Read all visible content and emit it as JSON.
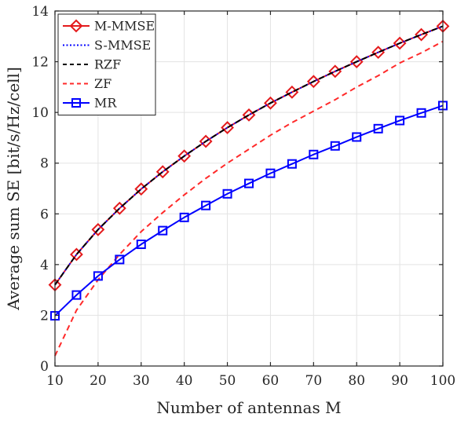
{
  "chart_data": {
    "type": "line",
    "xlabel": "Number of antennas M",
    "ylabel": "Average sum SE [bit/s/Hz/cell]",
    "xlim": [
      10,
      100
    ],
    "ylim": [
      0,
      14
    ],
    "xticks": [
      "10",
      "20",
      "30",
      "40",
      "50",
      "60",
      "70",
      "80",
      "90",
      "100"
    ],
    "yticks": [
      "0",
      "2",
      "4",
      "6",
      "8",
      "10",
      "12",
      "14"
    ],
    "grid": true,
    "legend_position": "top-left",
    "x": [
      10,
      15,
      20,
      25,
      30,
      35,
      40,
      45,
      50,
      55,
      60,
      65,
      70,
      75,
      80,
      85,
      90,
      95,
      100
    ],
    "series": [
      {
        "name": "M-MMSE",
        "color": "#e41a1c",
        "style": "solid",
        "marker": "diamond",
        "values": [
          3.2,
          4.4,
          5.38,
          6.22,
          6.98,
          7.66,
          8.28,
          8.86,
          9.4,
          9.9,
          10.37,
          10.8,
          11.22,
          11.62,
          12.0,
          12.37,
          12.73,
          13.07,
          13.4
        ]
      },
      {
        "name": "S-MMSE",
        "color": "#0000ff",
        "style": "dotted",
        "marker": "none",
        "values": [
          3.2,
          4.4,
          5.38,
          6.22,
          6.98,
          7.66,
          8.28,
          8.86,
          9.4,
          9.9,
          10.37,
          10.8,
          11.22,
          11.62,
          12.0,
          12.37,
          12.73,
          13.07,
          13.4
        ]
      },
      {
        "name": "RZF",
        "color": "#000000",
        "style": "dashed",
        "marker": "none",
        "values": [
          3.2,
          4.4,
          5.38,
          6.22,
          6.98,
          7.66,
          8.28,
          8.86,
          9.4,
          9.9,
          10.37,
          10.8,
          11.22,
          11.62,
          12.0,
          12.37,
          12.73,
          13.07,
          13.4
        ]
      },
      {
        "name": "ZF",
        "color": "#ff2a2a",
        "style": "dashed",
        "marker": "none",
        "values": [
          0.4,
          2.2,
          3.4,
          4.4,
          5.3,
          6.05,
          6.75,
          7.4,
          8.0,
          8.55,
          9.1,
          9.6,
          10.05,
          10.5,
          11.0,
          11.45,
          11.95,
          12.35,
          12.8
        ]
      },
      {
        "name": "MR",
        "color": "#0000ff",
        "style": "solid",
        "marker": "square",
        "values": [
          1.98,
          2.8,
          3.55,
          4.2,
          4.8,
          5.34,
          5.86,
          6.33,
          6.79,
          7.2,
          7.6,
          7.97,
          8.34,
          8.68,
          9.03,
          9.36,
          9.68,
          9.98,
          10.27
        ]
      }
    ]
  }
}
